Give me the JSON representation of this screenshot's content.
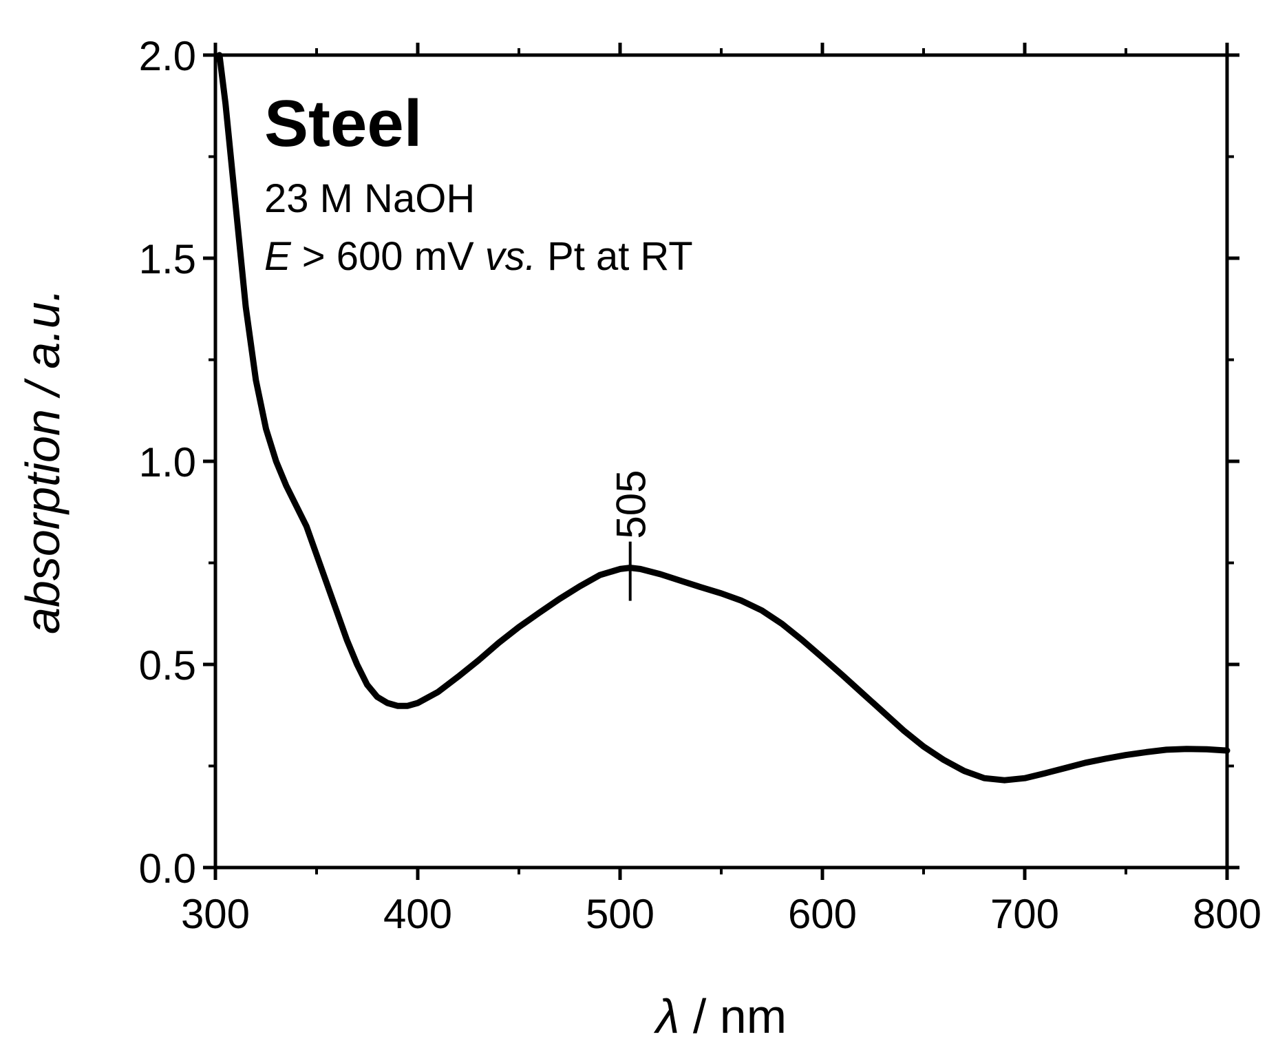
{
  "chart_data": {
    "type": "line",
    "title": "",
    "xlabel_symbol": "λ",
    "xlabel_unit": " / nm",
    "ylabel": "absorption / a.u.",
    "xlim": [
      300,
      800
    ],
    "ylim": [
      0,
      2.0
    ],
    "x_ticks": [
      300,
      400,
      500,
      600,
      700,
      800
    ],
    "x_tick_labels": [
      "300",
      "400",
      "500",
      "600",
      "700",
      "800"
    ],
    "y_ticks": [
      0,
      0.5,
      1.0,
      1.5,
      2.0
    ],
    "y_tick_labels": [
      "0.0",
      "0.5",
      "1.0",
      "1.5",
      "2.0"
    ],
    "grid": false,
    "series": [
      {
        "name": "Steel",
        "color": "#000000",
        "x": [
          302,
          305,
          310,
          315,
          320,
          325,
          330,
          335,
          340,
          345,
          350,
          355,
          360,
          365,
          370,
          375,
          380,
          385,
          390,
          395,
          400,
          410,
          420,
          430,
          440,
          450,
          460,
          470,
          480,
          490,
          500,
          505,
          510,
          520,
          530,
          540,
          550,
          560,
          570,
          580,
          590,
          600,
          610,
          620,
          630,
          640,
          650,
          660,
          670,
          680,
          690,
          700,
          710,
          720,
          730,
          740,
          750,
          760,
          770,
          780,
          790,
          800
        ],
        "values": [
          2.0,
          1.88,
          1.63,
          1.38,
          1.2,
          1.08,
          1.0,
          0.94,
          0.89,
          0.84,
          0.77,
          0.7,
          0.63,
          0.56,
          0.5,
          0.45,
          0.42,
          0.405,
          0.398,
          0.398,
          0.405,
          0.432,
          0.47,
          0.51,
          0.553,
          0.592,
          0.627,
          0.661,
          0.692,
          0.72,
          0.735,
          0.738,
          0.735,
          0.722,
          0.706,
          0.69,
          0.675,
          0.657,
          0.633,
          0.6,
          0.56,
          0.517,
          0.473,
          0.428,
          0.383,
          0.338,
          0.298,
          0.265,
          0.238,
          0.22,
          0.215,
          0.22,
          0.232,
          0.245,
          0.258,
          0.268,
          0.277,
          0.284,
          0.29,
          0.292,
          0.291,
          0.288
        ]
      }
    ],
    "annotations": {
      "title": "Steel",
      "line1": "23 M NaOH",
      "line2_E": "E",
      "line2_a": " > 600 mV ",
      "line2_vs": "vs.",
      "line2_b": " Pt at RT"
    },
    "peak_marker": {
      "x": 505,
      "label": "505"
    }
  }
}
